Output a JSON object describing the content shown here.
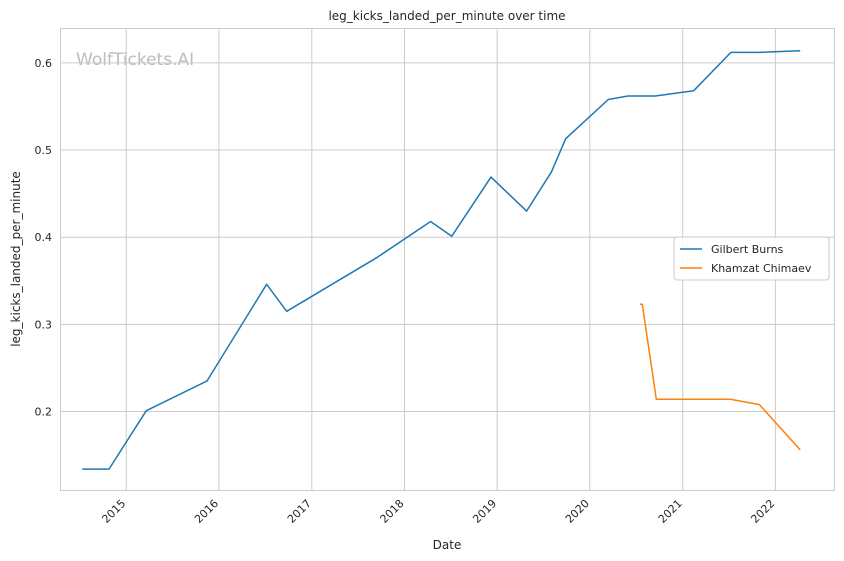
{
  "chart_data": {
    "type": "line",
    "title": "leg_kicks_landed_per_minute over time",
    "xlabel": "Date",
    "ylabel": "leg_kicks_landed_per_minute",
    "watermark": "WolfTickets.AI",
    "x_ticks": [
      "2015",
      "2016",
      "2017",
      "2018",
      "2019",
      "2020",
      "2021",
      "2022"
    ],
    "y_ticks": [
      "0.2",
      "0.3",
      "0.4",
      "0.5",
      "0.6"
    ],
    "xlim": [
      "2014-04-15",
      "2022-08-20"
    ],
    "ylim": [
      0.11,
      0.64
    ],
    "grid": true,
    "legend_position": "center-right",
    "series": [
      {
        "name": "Gilbert Burns",
        "color": "#1f77b4",
        "points": [
          [
            "2014-07-12",
            0.134
          ],
          [
            "2014-10-25",
            0.134
          ],
          [
            "2015-03-21",
            0.201
          ],
          [
            "2015-11-15",
            0.235
          ],
          [
            "2016-07-07",
            0.346
          ],
          [
            "2016-09-24",
            0.315
          ],
          [
            "2017-09-16",
            0.377
          ],
          [
            "2018-04-14",
            0.418
          ],
          [
            "2018-07-06",
            0.401
          ],
          [
            "2018-12-08",
            0.469
          ],
          [
            "2019-04-27",
            0.43
          ],
          [
            "2019-08-03",
            0.475
          ],
          [
            "2019-09-28",
            0.513
          ],
          [
            "2020-03-14",
            0.558
          ],
          [
            "2020-05-30",
            0.562
          ],
          [
            "2020-09-15",
            0.562
          ],
          [
            "2021-02-13",
            0.568
          ],
          [
            "2021-07-10",
            0.612
          ],
          [
            "2021-10-30",
            0.612
          ],
          [
            "2022-04-09",
            0.614
          ]
        ]
      },
      {
        "name": "Khamzat Chimaev",
        "color": "#ff7f0e",
        "points": [
          [
            "2020-07-16",
            0.323
          ],
          [
            "2020-07-26",
            0.323
          ],
          [
            "2020-09-19",
            0.214
          ],
          [
            "2021-07-08",
            0.214
          ],
          [
            "2021-10-30",
            0.208
          ],
          [
            "2022-04-09",
            0.156
          ]
        ]
      }
    ]
  }
}
